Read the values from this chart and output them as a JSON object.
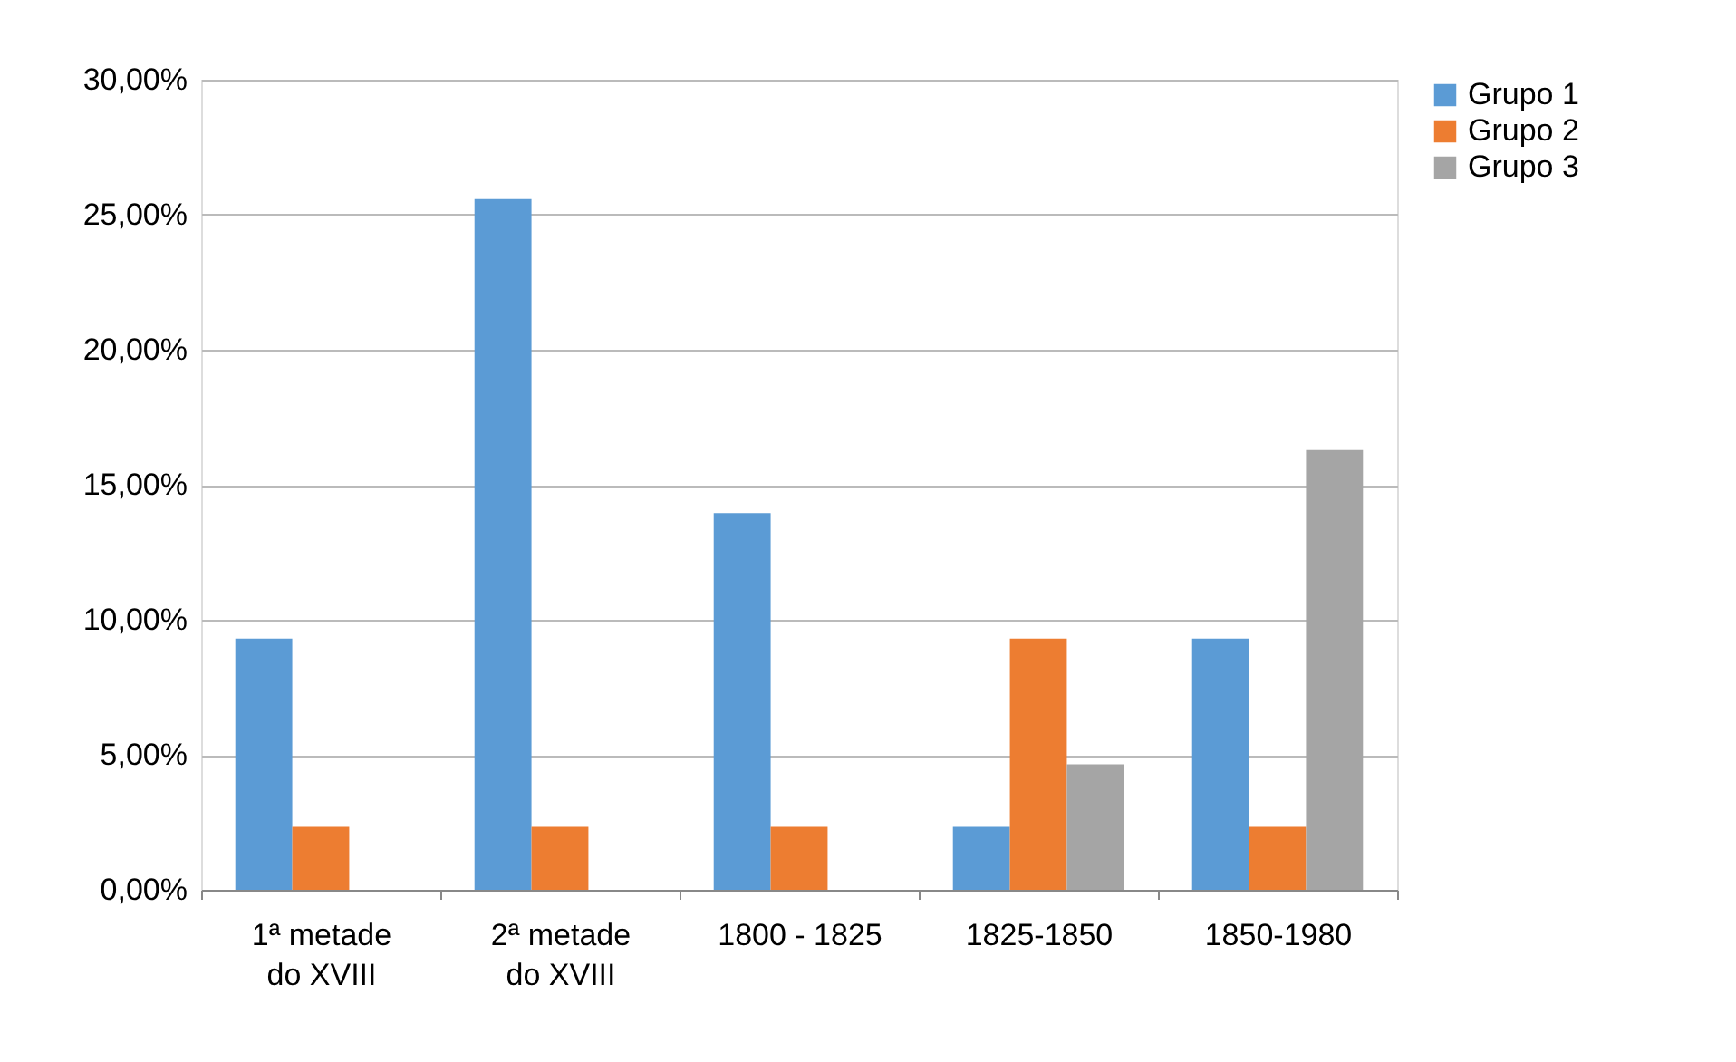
{
  "chart_data": {
    "type": "bar",
    "categories": [
      "1ª metade do XVIII",
      "2ª metade do XVIII",
      "1800 - 1825",
      "1825-1850",
      "1850-1980"
    ],
    "series": [
      {
        "name": "Grupo 1",
        "color": "#5b9bd5",
        "values": [
          9.3,
          25.58,
          13.95,
          2.33,
          9.3
        ]
      },
      {
        "name": "Grupo 2",
        "color": "#ed7d31",
        "values": [
          2.33,
          2.33,
          2.33,
          9.3,
          2.33
        ]
      },
      {
        "name": "Grupo 3",
        "color": "#a5a5a5",
        "values": [
          null,
          null,
          null,
          4.65,
          16.28
        ]
      }
    ],
    "ylim": [
      0,
      30
    ],
    "yticks": [
      {
        "value": 0,
        "label": "0,00%"
      },
      {
        "value": 5,
        "label": "5,00%"
      },
      {
        "value": 10,
        "label": "10,00%"
      },
      {
        "value": 15,
        "label": "15,00%"
      },
      {
        "value": 20,
        "label": "20,00%"
      },
      {
        "value": 25,
        "label": "25,00%"
      },
      {
        "value": 30,
        "label": "30,00%"
      }
    ],
    "grid": "y",
    "legend": "right"
  }
}
